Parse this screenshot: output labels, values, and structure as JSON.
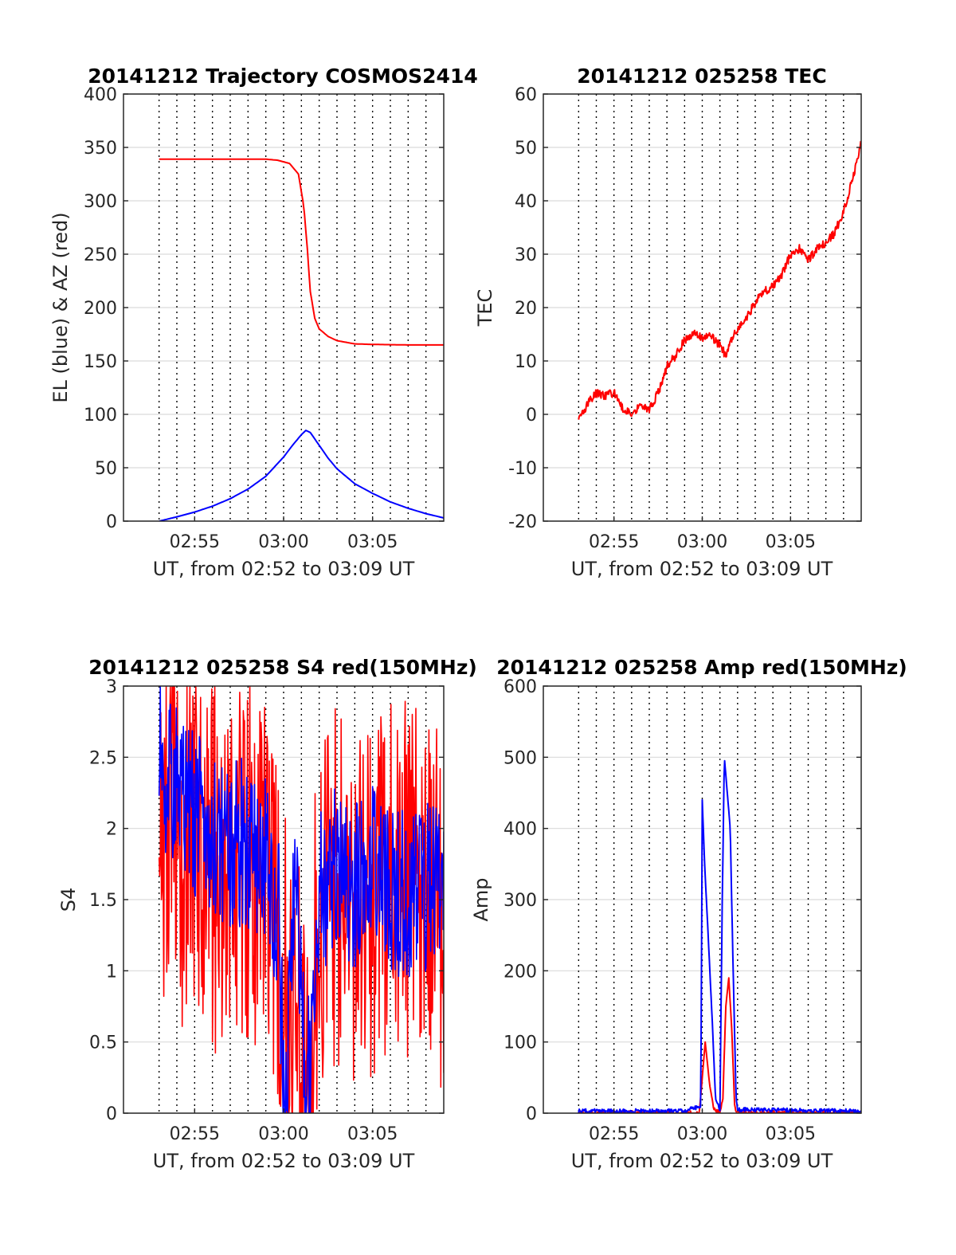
{
  "colors": {
    "red": "#ff0000",
    "blue": "#0000ff",
    "grid": "#d9d9d9",
    "axis": "#262626"
  },
  "chart_data": [
    {
      "type": "line",
      "title": "20141212 Trajectory COSMOS2414",
      "xlabel": "UT, from 02:52 to 03:09 UT",
      "ylabel": "EL (blue) & AZ (red)",
      "xlim": [
        "02:51",
        "03:09"
      ],
      "x_ticks": [
        "02:55",
        "03:00",
        "03:05"
      ],
      "ylim": [
        0,
        400
      ],
      "y_ticks": [
        "0",
        "50",
        "100",
        "150",
        "200",
        "250",
        "300",
        "350",
        "400"
      ],
      "grid": "on",
      "series": [
        {
          "color": "red",
          "x": [
            "02:53",
            "02:55",
            "02:57",
            "02:59",
            "02:59:40",
            "03:00:20",
            "03:00:50",
            "03:01:08",
            "03:01:20",
            "03:01:30",
            "03:01:45",
            "03:02:00",
            "03:02:30",
            "03:03",
            "03:04",
            "03:05",
            "03:07",
            "03:09"
          ],
          "values": [
            339,
            339,
            339,
            339,
            338,
            335,
            325,
            295,
            255,
            215,
            190,
            180,
            173,
            169,
            166,
            165.5,
            165,
            165
          ]
        },
        {
          "color": "blue",
          "x": [
            "02:53",
            "02:54",
            "02:55",
            "02:56",
            "02:57",
            "02:58",
            "02:59",
            "03:00",
            "03:00:30",
            "03:01",
            "03:01:15",
            "03:01:30",
            "03:02",
            "03:02:30",
            "03:03",
            "03:04",
            "03:05",
            "03:06",
            "03:07",
            "03:08",
            "03:09"
          ],
          "values": [
            0,
            4,
            8.5,
            14,
            21,
            30,
            42,
            60,
            71,
            81,
            85,
            83,
            71,
            59,
            49,
            35,
            26,
            18,
            12,
            7,
            3
          ]
        }
      ]
    },
    {
      "type": "line",
      "title": "20141212 025258 TEC",
      "xlabel": "UT, from 02:52 to 03:09 UT",
      "ylabel": "TEC",
      "xlim": [
        "02:51",
        "03:09"
      ],
      "x_ticks": [
        "02:55",
        "03:00",
        "03:05"
      ],
      "ylim": [
        -20,
        60
      ],
      "y_ticks": [
        "-20",
        "-10",
        "0",
        "10",
        "20",
        "30",
        "40",
        "50",
        "60"
      ],
      "grid": "on",
      "series": [
        {
          "color": "red",
          "x": [
            "02:53",
            "02:53:30",
            "02:54",
            "02:54:30",
            "02:55",
            "02:55:30",
            "02:56",
            "02:56:30",
            "02:57",
            "02:57:30",
            "02:58",
            "02:58:30",
            "02:59",
            "02:59:30",
            "03:00",
            "03:00:30",
            "03:01",
            "03:01:20",
            "03:01:40",
            "03:02",
            "03:02:30",
            "03:03",
            "03:03:30",
            "03:04",
            "03:04:30",
            "03:05",
            "03:05:30",
            "03:06",
            "03:06:30",
            "03:07",
            "03:07:30",
            "03:08",
            "03:08:30",
            "03:09"
          ],
          "values": [
            -1,
            2,
            4,
            3.5,
            4,
            1,
            0,
            2,
            1,
            4,
            9,
            11,
            14,
            15,
            14.5,
            14.5,
            13,
            11,
            14,
            16,
            18,
            21,
            23,
            24,
            26,
            30,
            31,
            29,
            31,
            32,
            34,
            38,
            44,
            51
          ]
        }
      ]
    },
    {
      "type": "line",
      "title": "20141212 025258 S4 red(150MHz)",
      "xlabel": "UT, from 02:52 to 03:09 UT",
      "ylabel": "S4",
      "xlim": [
        "02:51",
        "03:09"
      ],
      "x_ticks": [
        "02:55",
        "03:00",
        "03:05"
      ],
      "ylim": [
        0,
        3
      ],
      "y_ticks": [
        "0",
        "0.5",
        "1",
        "1.5",
        "2",
        "2.5",
        "3"
      ],
      "grid": "on",
      "series": [
        {
          "color": "red",
          "x": [
            "02:53",
            "02:54",
            "02:55",
            "02:56",
            "02:57",
            "02:58",
            "02:59",
            "03:00",
            "03:00:30",
            "03:01",
            "03:01:30",
            "03:02",
            "03:03",
            "03:04",
            "03:05",
            "03:06",
            "03:07",
            "03:08",
            "03:09"
          ],
          "values": [
            2.2,
            1.9,
            1.8,
            1.7,
            1.7,
            1.8,
            1.7,
            0.9,
            0.3,
            0.6,
            0.6,
            1.3,
            1.6,
            1.4,
            1.5,
            1.6,
            1.6,
            1.5,
            1.4
          ]
        },
        {
          "color": "blue",
          "x": [
            "02:53",
            "02:54",
            "02:55",
            "02:56",
            "02:57",
            "02:58",
            "02:59",
            "02:59:45",
            "03:00",
            "03:00:15",
            "03:00:30",
            "03:01",
            "03:01:15",
            "03:01:30",
            "03:02",
            "03:03",
            "03:04",
            "03:05",
            "03:06",
            "03:07",
            "03:08",
            "03:09"
          ],
          "values": [
            2.5,
            2.3,
            2.1,
            2.0,
            1.9,
            1.9,
            1.8,
            1.3,
            0.15,
            0.3,
            1.5,
            1.1,
            0.15,
            0.3,
            1.6,
            1.7,
            1.6,
            1.7,
            1.6,
            1.5,
            1.6,
            1.5
          ]
        }
      ]
    },
    {
      "type": "line",
      "title": "20141212 025258 Amp red(150MHz)",
      "xlabel": "UT, from 02:52 to 03:09 UT",
      "ylabel": "Amp",
      "xlim": [
        "02:51",
        "03:09"
      ],
      "x_ticks": [
        "02:55",
        "03:00",
        "03:05"
      ],
      "ylim": [
        0,
        600
      ],
      "y_ticks": [
        "0",
        "100",
        "200",
        "300",
        "400",
        "500",
        "600"
      ],
      "grid": "on",
      "series": [
        {
          "color": "red",
          "x": [
            "02:53",
            "02:59:50",
            "03:00",
            "03:00:10",
            "03:00:25",
            "03:00:40",
            "03:01",
            "03:01:10",
            "03:01:20",
            "03:01:30",
            "03:01:40",
            "03:01:50",
            "03:02",
            "03:09"
          ],
          "values": [
            0,
            0,
            50,
            100,
            40,
            5,
            0,
            20,
            150,
            190,
            120,
            10,
            0,
            0
          ]
        },
        {
          "color": "blue",
          "x": [
            "02:53",
            "02:59",
            "02:59:55",
            "03:00",
            "03:00:08",
            "03:00:20",
            "03:00:35",
            "03:00:45",
            "03:01",
            "03:01:08",
            "03:01:15",
            "03:01:25",
            "03:01:35",
            "03:01:45",
            "03:01:55",
            "03:02",
            "03:09"
          ],
          "values": [
            3,
            3,
            10,
            440,
            350,
            250,
            120,
            20,
            5,
            300,
            500,
            450,
            400,
            200,
            20,
            5,
            3
          ]
        }
      ]
    }
  ]
}
